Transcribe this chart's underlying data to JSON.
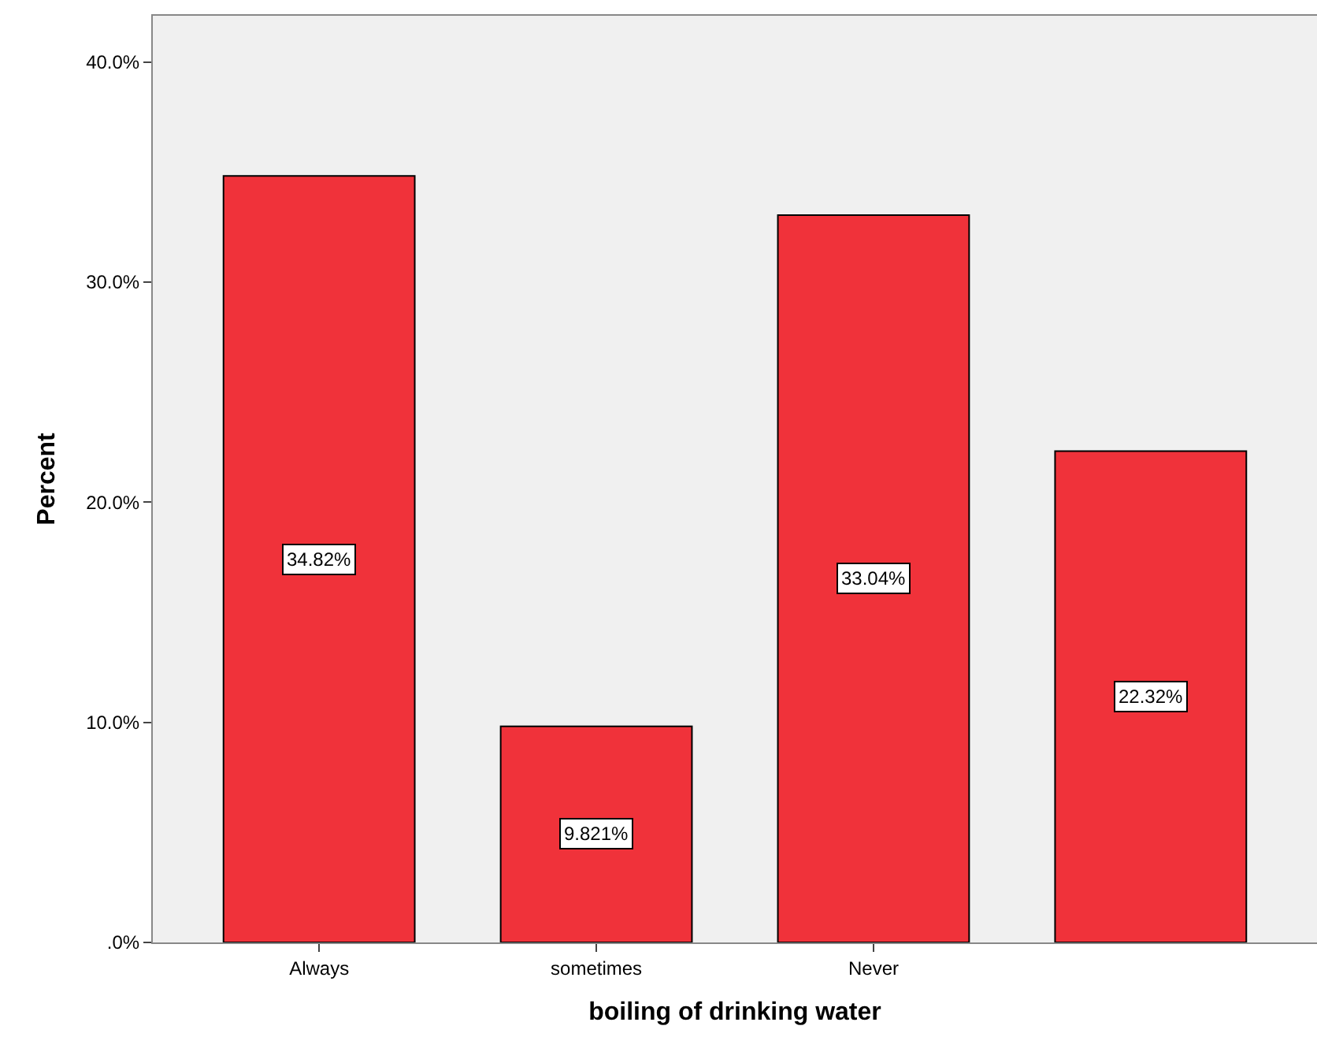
{
  "chart_data": {
    "type": "bar",
    "xlabel": "boiling of drinking water",
    "ylabel": "Percent",
    "categories": [
      "Always",
      "sometimes",
      "Never",
      null
    ],
    "values": [
      34.82,
      9.821,
      33.04,
      22.32
    ],
    "value_labels": [
      "34.82%",
      "9.821%",
      "33.04%",
      "22.32%"
    ],
    "color": "#f0323a",
    "ylim": [
      0,
      42.1
    ],
    "yticks": [
      {
        "value": 0,
        "label": ".0%"
      },
      {
        "value": 10,
        "label": "10.0%"
      },
      {
        "value": 20,
        "label": "20.0%"
      },
      {
        "value": 30,
        "label": "30.0%"
      },
      {
        "value": 40,
        "label": "40.0%"
      }
    ],
    "grid": false,
    "legend": false
  }
}
